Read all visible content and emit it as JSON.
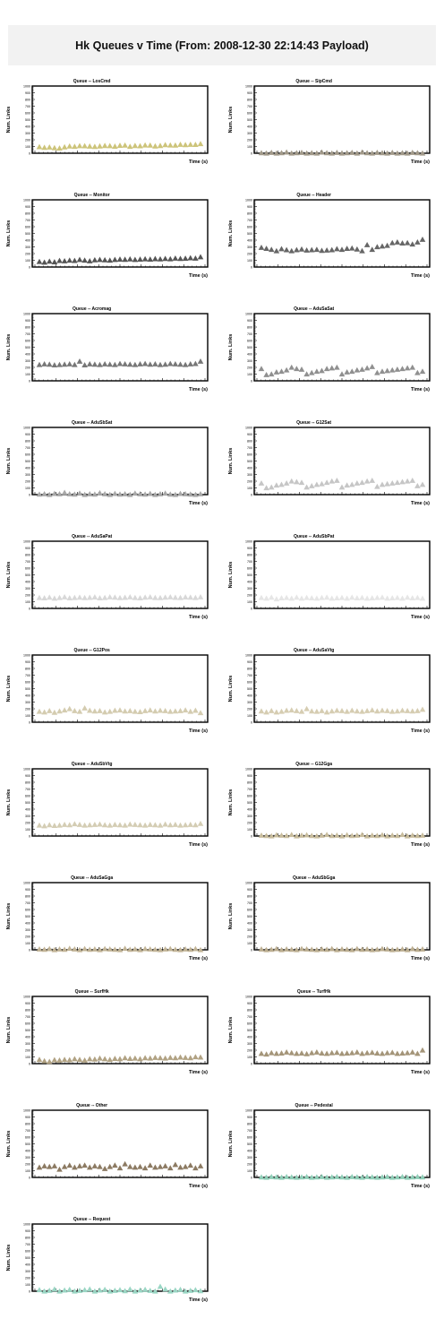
{
  "page_title": "Hk Queues v Time (From: 2008-12-30 22:14:43 Payload)",
  "chart_data": [
    {
      "type": "scatter",
      "title": "Queue -- LosCmd",
      "xlabel": "Time (s)",
      "ylabel": "Num. Links",
      "ylim": [
        0,
        1000
      ],
      "yticks": [
        "0",
        "100",
        "200",
        "300",
        "400",
        "500",
        "600",
        "700",
        "800",
        "900",
        "1000"
      ],
      "color": "#cdc47a",
      "values": [
        95,
        85,
        90,
        80,
        75,
        92,
        105,
        100,
        110,
        108,
        104,
        98,
        106,
        112,
        110,
        102,
        115,
        118,
        100,
        112,
        108,
        120,
        118,
        106,
        112,
        125,
        120,
        118,
        130,
        125,
        130,
        128,
        140
      ]
    },
    {
      "type": "scatter",
      "title": "Queue -- SipCmd",
      "xlabel": "Time (s)",
      "ylabel": "Num. Links",
      "ylim": [
        0,
        1000
      ],
      "yticks": [
        "0",
        "100",
        "200",
        "300",
        "400",
        "500",
        "600",
        "700",
        "800",
        "900",
        "1000"
      ],
      "color": "#a29a8a",
      "values": [
        5,
        0,
        10,
        0,
        5,
        15,
        0,
        5,
        10,
        0,
        5,
        0,
        15,
        5,
        0,
        10,
        0,
        5,
        10,
        0,
        15,
        5,
        0,
        10,
        5,
        0,
        10,
        0,
        5,
        0,
        10,
        5,
        0
      ]
    },
    {
      "type": "scatter",
      "title": "Queue -- Monitor",
      "xlabel": "Time (s)",
      "ylabel": "Num. Links",
      "ylim": [
        0,
        1000
      ],
      "yticks": [
        "0",
        "100",
        "200",
        "300",
        "400",
        "500",
        "600",
        "700",
        "800",
        "900",
        "1000"
      ],
      "color": "#555555",
      "values": [
        80,
        70,
        85,
        75,
        95,
        90,
        100,
        95,
        110,
        100,
        90,
        105,
        110,
        105,
        100,
        110,
        115,
        112,
        118,
        110,
        115,
        120,
        115,
        122,
        118,
        125,
        120,
        130,
        125,
        128,
        135,
        130,
        150
      ]
    },
    {
      "type": "scatter",
      "title": "Queue -- Header",
      "xlabel": "Time (s)",
      "ylabel": "Num. Links",
      "ylim": [
        0,
        1000
      ],
      "yticks": [
        "0",
        "100",
        "200",
        "300",
        "400",
        "500",
        "600",
        "700",
        "800",
        "900",
        "1000"
      ],
      "color": "#666666",
      "values": [
        290,
        275,
        260,
        240,
        270,
        255,
        240,
        255,
        265,
        250,
        255,
        260,
        245,
        250,
        255,
        270,
        260,
        275,
        280,
        265,
        240,
        330,
        260,
        300,
        310,
        320,
        360,
        370,
        355,
        360,
        340,
        370,
        410
      ]
    },
    {
      "type": "scatter",
      "title": "Queue -- Acromag",
      "xlabel": "Time (s)",
      "ylabel": "Num. Links",
      "ylim": [
        0,
        1000
      ],
      "yticks": [
        "0",
        "100",
        "200",
        "300",
        "400",
        "500",
        "600",
        "700",
        "800",
        "900",
        "1000"
      ],
      "color": "#777777",
      "values": [
        240,
        250,
        245,
        235,
        240,
        245,
        250,
        240,
        290,
        235,
        250,
        245,
        240,
        250,
        245,
        240,
        255,
        250,
        245,
        240,
        250,
        255,
        245,
        250,
        240,
        245,
        255,
        250,
        245,
        240,
        250,
        255,
        290
      ]
    },
    {
      "type": "scatter",
      "title": "Queue -- AduSaSat",
      "xlabel": "Time (s)",
      "ylabel": "Num. Links",
      "ylim": [
        0,
        1000
      ],
      "yticks": [
        "0",
        "100",
        "200",
        "300",
        "400",
        "500",
        "600",
        "700",
        "800",
        "900",
        "1000"
      ],
      "color": "#909090",
      "values": [
        180,
        90,
        100,
        130,
        140,
        160,
        200,
        180,
        170,
        100,
        120,
        140,
        150,
        180,
        190,
        200,
        100,
        130,
        140,
        160,
        170,
        190,
        210,
        120,
        140,
        150,
        160,
        170,
        180,
        190,
        200,
        120,
        140
      ]
    },
    {
      "type": "scatter",
      "title": "Queue -- AduSbSat",
      "xlabel": "Time (s)",
      "ylabel": "Num. Links",
      "ylim": [
        0,
        1000
      ],
      "yticks": [
        "0",
        "100",
        "200",
        "300",
        "400",
        "500",
        "600",
        "700",
        "800",
        "900",
        "1000"
      ],
      "color": "#a8a8a8",
      "values": [
        5,
        10,
        0,
        15,
        10,
        30,
        10,
        5,
        20,
        0,
        10,
        5,
        25,
        10,
        0,
        15,
        5,
        10,
        0,
        20,
        10,
        5,
        15,
        0,
        10,
        20,
        5,
        0,
        15,
        10,
        5,
        0,
        10
      ]
    },
    {
      "type": "scatter",
      "title": "Queue -- G12Sat",
      "xlabel": "Time (s)",
      "ylabel": "Num. Links",
      "ylim": [
        0,
        1000
      ],
      "yticks": [
        "0",
        "100",
        "200",
        "300",
        "400",
        "500",
        "600",
        "700",
        "800",
        "900",
        "1000"
      ],
      "color": "#c6c6c6",
      "values": [
        170,
        100,
        110,
        140,
        150,
        170,
        200,
        190,
        180,
        110,
        130,
        150,
        160,
        180,
        200,
        210,
        110,
        140,
        150,
        170,
        180,
        200,
        210,
        120,
        150,
        160,
        170,
        180,
        190,
        200,
        210,
        130,
        150
      ]
    },
    {
      "type": "scatter",
      "title": "Queue -- AduSaPat",
      "xlabel": "Time (s)",
      "ylabel": "Num. Links",
      "ylim": [
        0,
        1000
      ],
      "yticks": [
        "0",
        "100",
        "200",
        "300",
        "400",
        "500",
        "600",
        "700",
        "800",
        "900",
        "1000"
      ],
      "color": "#d8d8d8",
      "values": [
        160,
        155,
        165,
        150,
        160,
        170,
        155,
        160,
        165,
        158,
        162,
        168,
        155,
        160,
        170,
        165,
        158,
        162,
        170,
        160,
        155,
        165,
        170,
        160,
        158,
        165,
        170,
        162,
        160,
        168,
        165,
        160,
        170
      ]
    },
    {
      "type": "scatter",
      "title": "Queue -- AduSbPat",
      "xlabel": "Time (s)",
      "ylabel": "Num. Links",
      "ylim": [
        0,
        1000
      ],
      "yticks": [
        "0",
        "100",
        "200",
        "300",
        "400",
        "500",
        "600",
        "700",
        "800",
        "900",
        "1000"
      ],
      "color": "#e6e6e6",
      "values": [
        160,
        150,
        165,
        140,
        155,
        160,
        150,
        165,
        150,
        160,
        155,
        150,
        160,
        165,
        150,
        155,
        160,
        150,
        165,
        155,
        160,
        150,
        155,
        160,
        165,
        150,
        155,
        160,
        150,
        165,
        155,
        160,
        150
      ]
    },
    {
      "type": "scatter",
      "title": "Queue -- G12Pos",
      "xlabel": "Time (s)",
      "ylabel": "Num. Links",
      "ylim": [
        0,
        1000
      ],
      "yticks": [
        "0",
        "100",
        "200",
        "300",
        "400",
        "500",
        "600",
        "700",
        "800",
        "900",
        "1000"
      ],
      "color": "#d4ccb0",
      "values": [
        160,
        150,
        170,
        145,
        165,
        180,
        200,
        170,
        160,
        210,
        175,
        165,
        170,
        150,
        160,
        175,
        180,
        165,
        170,
        160,
        155,
        170,
        180,
        165,
        175,
        170,
        160,
        165,
        170,
        180,
        160,
        175,
        140
      ]
    },
    {
      "type": "scatter",
      "title": "Queue -- AduSaVtg",
      "xlabel": "Time (s)",
      "ylabel": "Num. Links",
      "ylim": [
        0,
        1000
      ],
      "yticks": [
        "0",
        "100",
        "200",
        "300",
        "400",
        "500",
        "600",
        "700",
        "800",
        "900",
        "1000"
      ],
      "color": "#d6cdb2",
      "values": [
        165,
        150,
        170,
        150,
        160,
        175,
        180,
        170,
        160,
        200,
        165,
        160,
        170,
        150,
        165,
        175,
        170,
        160,
        175,
        165,
        160,
        170,
        180,
        165,
        175,
        170,
        160,
        165,
        175,
        170,
        165,
        170,
        190
      ]
    },
    {
      "type": "scatter",
      "title": "Queue -- AduSbVtg",
      "xlabel": "Time (s)",
      "ylabel": "Num. Links",
      "ylim": [
        0,
        1000
      ],
      "yticks": [
        "0",
        "100",
        "200",
        "300",
        "400",
        "500",
        "600",
        "700",
        "800",
        "900",
        "1000"
      ],
      "color": "#d4cdb4",
      "values": [
        160,
        150,
        165,
        155,
        160,
        170,
        165,
        180,
        170,
        160,
        165,
        170,
        175,
        165,
        160,
        170,
        165,
        160,
        175,
        170,
        165,
        160,
        170,
        165,
        160,
        175,
        165,
        170,
        160,
        165,
        170,
        165,
        185
      ]
    },
    {
      "type": "scatter",
      "title": "Queue -- G12Gga",
      "xlabel": "Time (s)",
      "ylabel": "Num. Links",
      "ylim": [
        0,
        1000
      ],
      "yticks": [
        "0",
        "100",
        "200",
        "300",
        "400",
        "500",
        "600",
        "700",
        "800",
        "900",
        "1000"
      ],
      "color": "#c8bc9c",
      "values": [
        10,
        5,
        0,
        15,
        10,
        5,
        20,
        0,
        10,
        15,
        5,
        0,
        10,
        20,
        5,
        10,
        0,
        15,
        5,
        10,
        20,
        0,
        10,
        5,
        15,
        0,
        10,
        5,
        20,
        0,
        10,
        5,
        10
      ]
    },
    {
      "type": "scatter",
      "title": "Queue -- AduSaGga",
      "xlabel": "Time (s)",
      "ylabel": "Num. Links",
      "ylim": [
        0,
        1000
      ],
      "yticks": [
        "0",
        "100",
        "200",
        "300",
        "400",
        "500",
        "600",
        "700",
        "800",
        "900",
        "1000"
      ],
      "color": "#c2b496",
      "values": [
        10,
        5,
        15,
        0,
        10,
        5,
        20,
        10,
        0,
        15,
        5,
        10,
        0,
        15,
        10,
        5,
        0,
        20,
        5,
        10,
        0,
        15,
        10,
        5,
        0,
        10,
        15,
        5,
        0,
        10,
        5,
        15,
        0
      ]
    },
    {
      "type": "scatter",
      "title": "Queue -- AduSbGga",
      "xlabel": "Time (s)",
      "ylabel": "Num. Links",
      "ylim": [
        0,
        1000
      ],
      "yticks": [
        "0",
        "100",
        "200",
        "300",
        "400",
        "500",
        "600",
        "700",
        "800",
        "900",
        "1000"
      ],
      "color": "#bcae90",
      "values": [
        10,
        0,
        5,
        15,
        0,
        10,
        5,
        0,
        15,
        10,
        5,
        0,
        10,
        5,
        15,
        0,
        10,
        5,
        0,
        15,
        5,
        10,
        0,
        5,
        15,
        10,
        0,
        5,
        10,
        0,
        15,
        5,
        10
      ]
    },
    {
      "type": "scatter",
      "title": "Queue -- SurfHk",
      "xlabel": "Time (s)",
      "ylabel": "Num. Links",
      "ylim": [
        0,
        1000
      ],
      "yticks": [
        "0",
        "100",
        "200",
        "300",
        "400",
        "500",
        "600",
        "700",
        "800",
        "900",
        "1000"
      ],
      "color": "#b1a283",
      "values": [
        60,
        40,
        30,
        55,
        50,
        60,
        55,
        70,
        60,
        50,
        70,
        65,
        80,
        70,
        60,
        75,
        70,
        85,
        75,
        80,
        70,
        85,
        80,
        90,
        85,
        80,
        90,
        85,
        95,
        90,
        85,
        100,
        95
      ]
    },
    {
      "type": "scatter",
      "title": "Queue -- TurfHk",
      "xlabel": "Time (s)",
      "ylabel": "Num. Links",
      "ylim": [
        0,
        1000
      ],
      "yticks": [
        "0",
        "100",
        "200",
        "300",
        "400",
        "500",
        "600",
        "700",
        "800",
        "900",
        "1000"
      ],
      "color": "#a49579",
      "values": [
        150,
        140,
        160,
        150,
        155,
        170,
        160,
        150,
        155,
        145,
        160,
        170,
        155,
        150,
        160,
        165,
        150,
        155,
        160,
        170,
        150,
        160,
        165,
        155,
        150,
        160,
        165,
        150,
        155,
        160,
        170,
        150,
        200
      ]
    },
    {
      "type": "scatter",
      "title": "Queue -- Other",
      "xlabel": "Time (s)",
      "ylabel": "Num. Links",
      "ylim": [
        0,
        1000
      ],
      "yticks": [
        "0",
        "100",
        "200",
        "300",
        "400",
        "500",
        "600",
        "700",
        "800",
        "900",
        "1000"
      ],
      "color": "#8c7a62",
      "values": [
        150,
        170,
        160,
        170,
        120,
        160,
        180,
        150,
        170,
        180,
        150,
        170,
        160,
        130,
        160,
        180,
        140,
        200,
        160,
        150,
        160,
        140,
        180,
        150,
        160,
        170,
        140,
        190,
        150,
        160,
        180,
        140,
        170
      ]
    },
    {
      "type": "scatter",
      "title": "Queue -- Pedestal",
      "xlabel": "Time (s)",
      "ylabel": "Num. Links",
      "ylim": [
        0,
        1000
      ],
      "yticks": [
        "0",
        "100",
        "200",
        "300",
        "400",
        "500",
        "600",
        "700",
        "800",
        "900",
        "1000"
      ],
      "color": "#8fcfb8",
      "values": [
        5,
        0,
        10,
        5,
        0,
        10,
        5,
        0,
        5,
        10,
        0,
        5,
        10,
        0,
        5,
        10,
        5,
        0,
        10,
        5,
        0,
        10,
        5,
        0,
        5,
        10,
        0,
        5,
        10,
        0,
        5,
        10,
        5
      ]
    },
    {
      "type": "scatter",
      "title": "Queue -- Request",
      "xlabel": "Time (s)",
      "ylabel": "Num. Links",
      "ylim": [
        0,
        1000
      ],
      "yticks": [
        "0",
        "100",
        "200",
        "300",
        "400",
        "500",
        "600",
        "700",
        "800",
        "900",
        "1000"
      ],
      "color": "#9ad6c4",
      "values": [
        20,
        0,
        10,
        30,
        0,
        15,
        25,
        0,
        10,
        20,
        30,
        0,
        15,
        25,
        0,
        10,
        20,
        5,
        30,
        0,
        15,
        25,
        10,
        0,
        70,
        30,
        0,
        15,
        25,
        0,
        10,
        20,
        5
      ]
    }
  ]
}
